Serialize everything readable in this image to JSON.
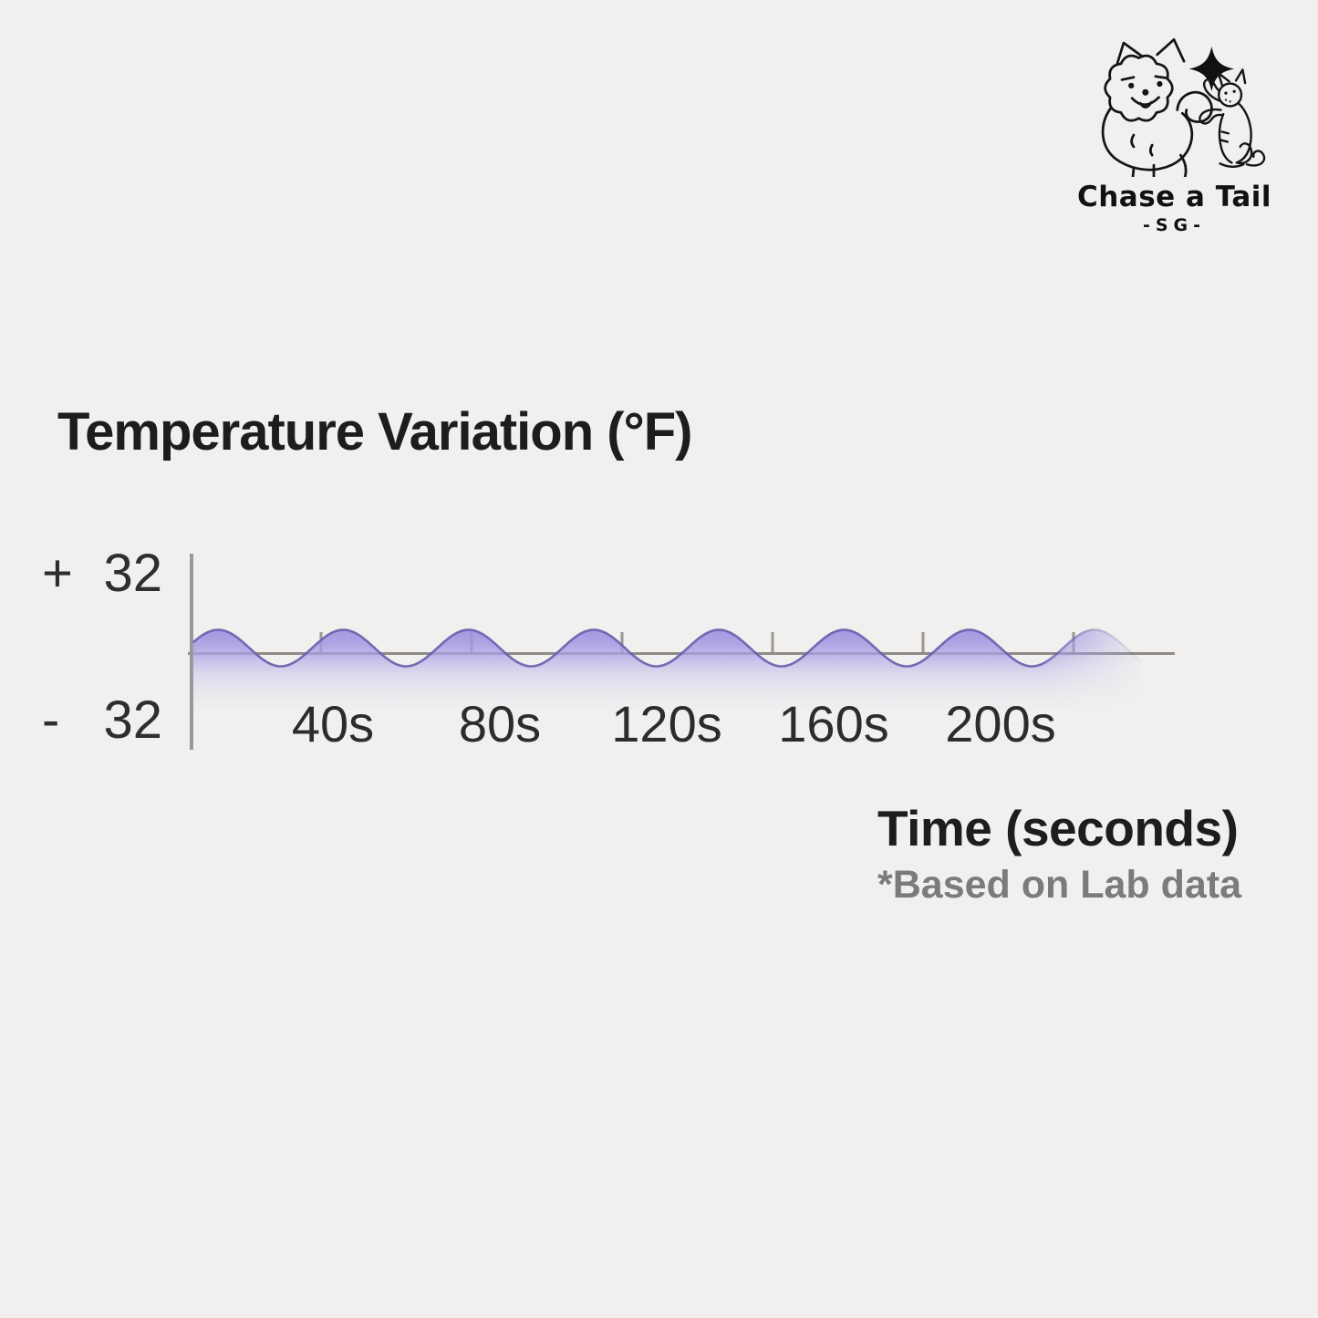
{
  "page": {
    "background_color": "#f1f0ee"
  },
  "logo": {
    "brand": "Chase a Tail",
    "subtitle": "-SG-",
    "icon": "pomeranian-dog-and-cat-with-sparkle"
  },
  "chart_data": {
    "type": "area",
    "title": "Temperature Variation (°F)",
    "xlabel": "Time (seconds)",
    "footnote": "*Based on Lab data",
    "ylim": [
      -32,
      32
    ],
    "y_axis_labels": {
      "max_sign": "+",
      "max_value": "32",
      "min_sign": "-",
      "min_value": "32"
    },
    "x_tick_labels": [
      "40s",
      "80s",
      "120s",
      "160s",
      "200s"
    ],
    "x_tick_interval_s": 40,
    "wave": {
      "shape": "sine",
      "description": "temperature oscillates around 0 °F with small steady ripples, fading out after ~230 s",
      "center_f": 0,
      "amplitude_f": 8,
      "period_s": 30,
      "cycles": 8,
      "time_start_s": 6.5,
      "time_end_s": 234,
      "phase_zero_ascending_s": 5
    },
    "legend": "none",
    "grid": false,
    "colors": {
      "fill_top": "#9c8ddf",
      "fill_mid": "#aca0e5",
      "stroke": "#6b5fae",
      "axis": "#8f8c88",
      "tick": "#9b9894"
    }
  }
}
